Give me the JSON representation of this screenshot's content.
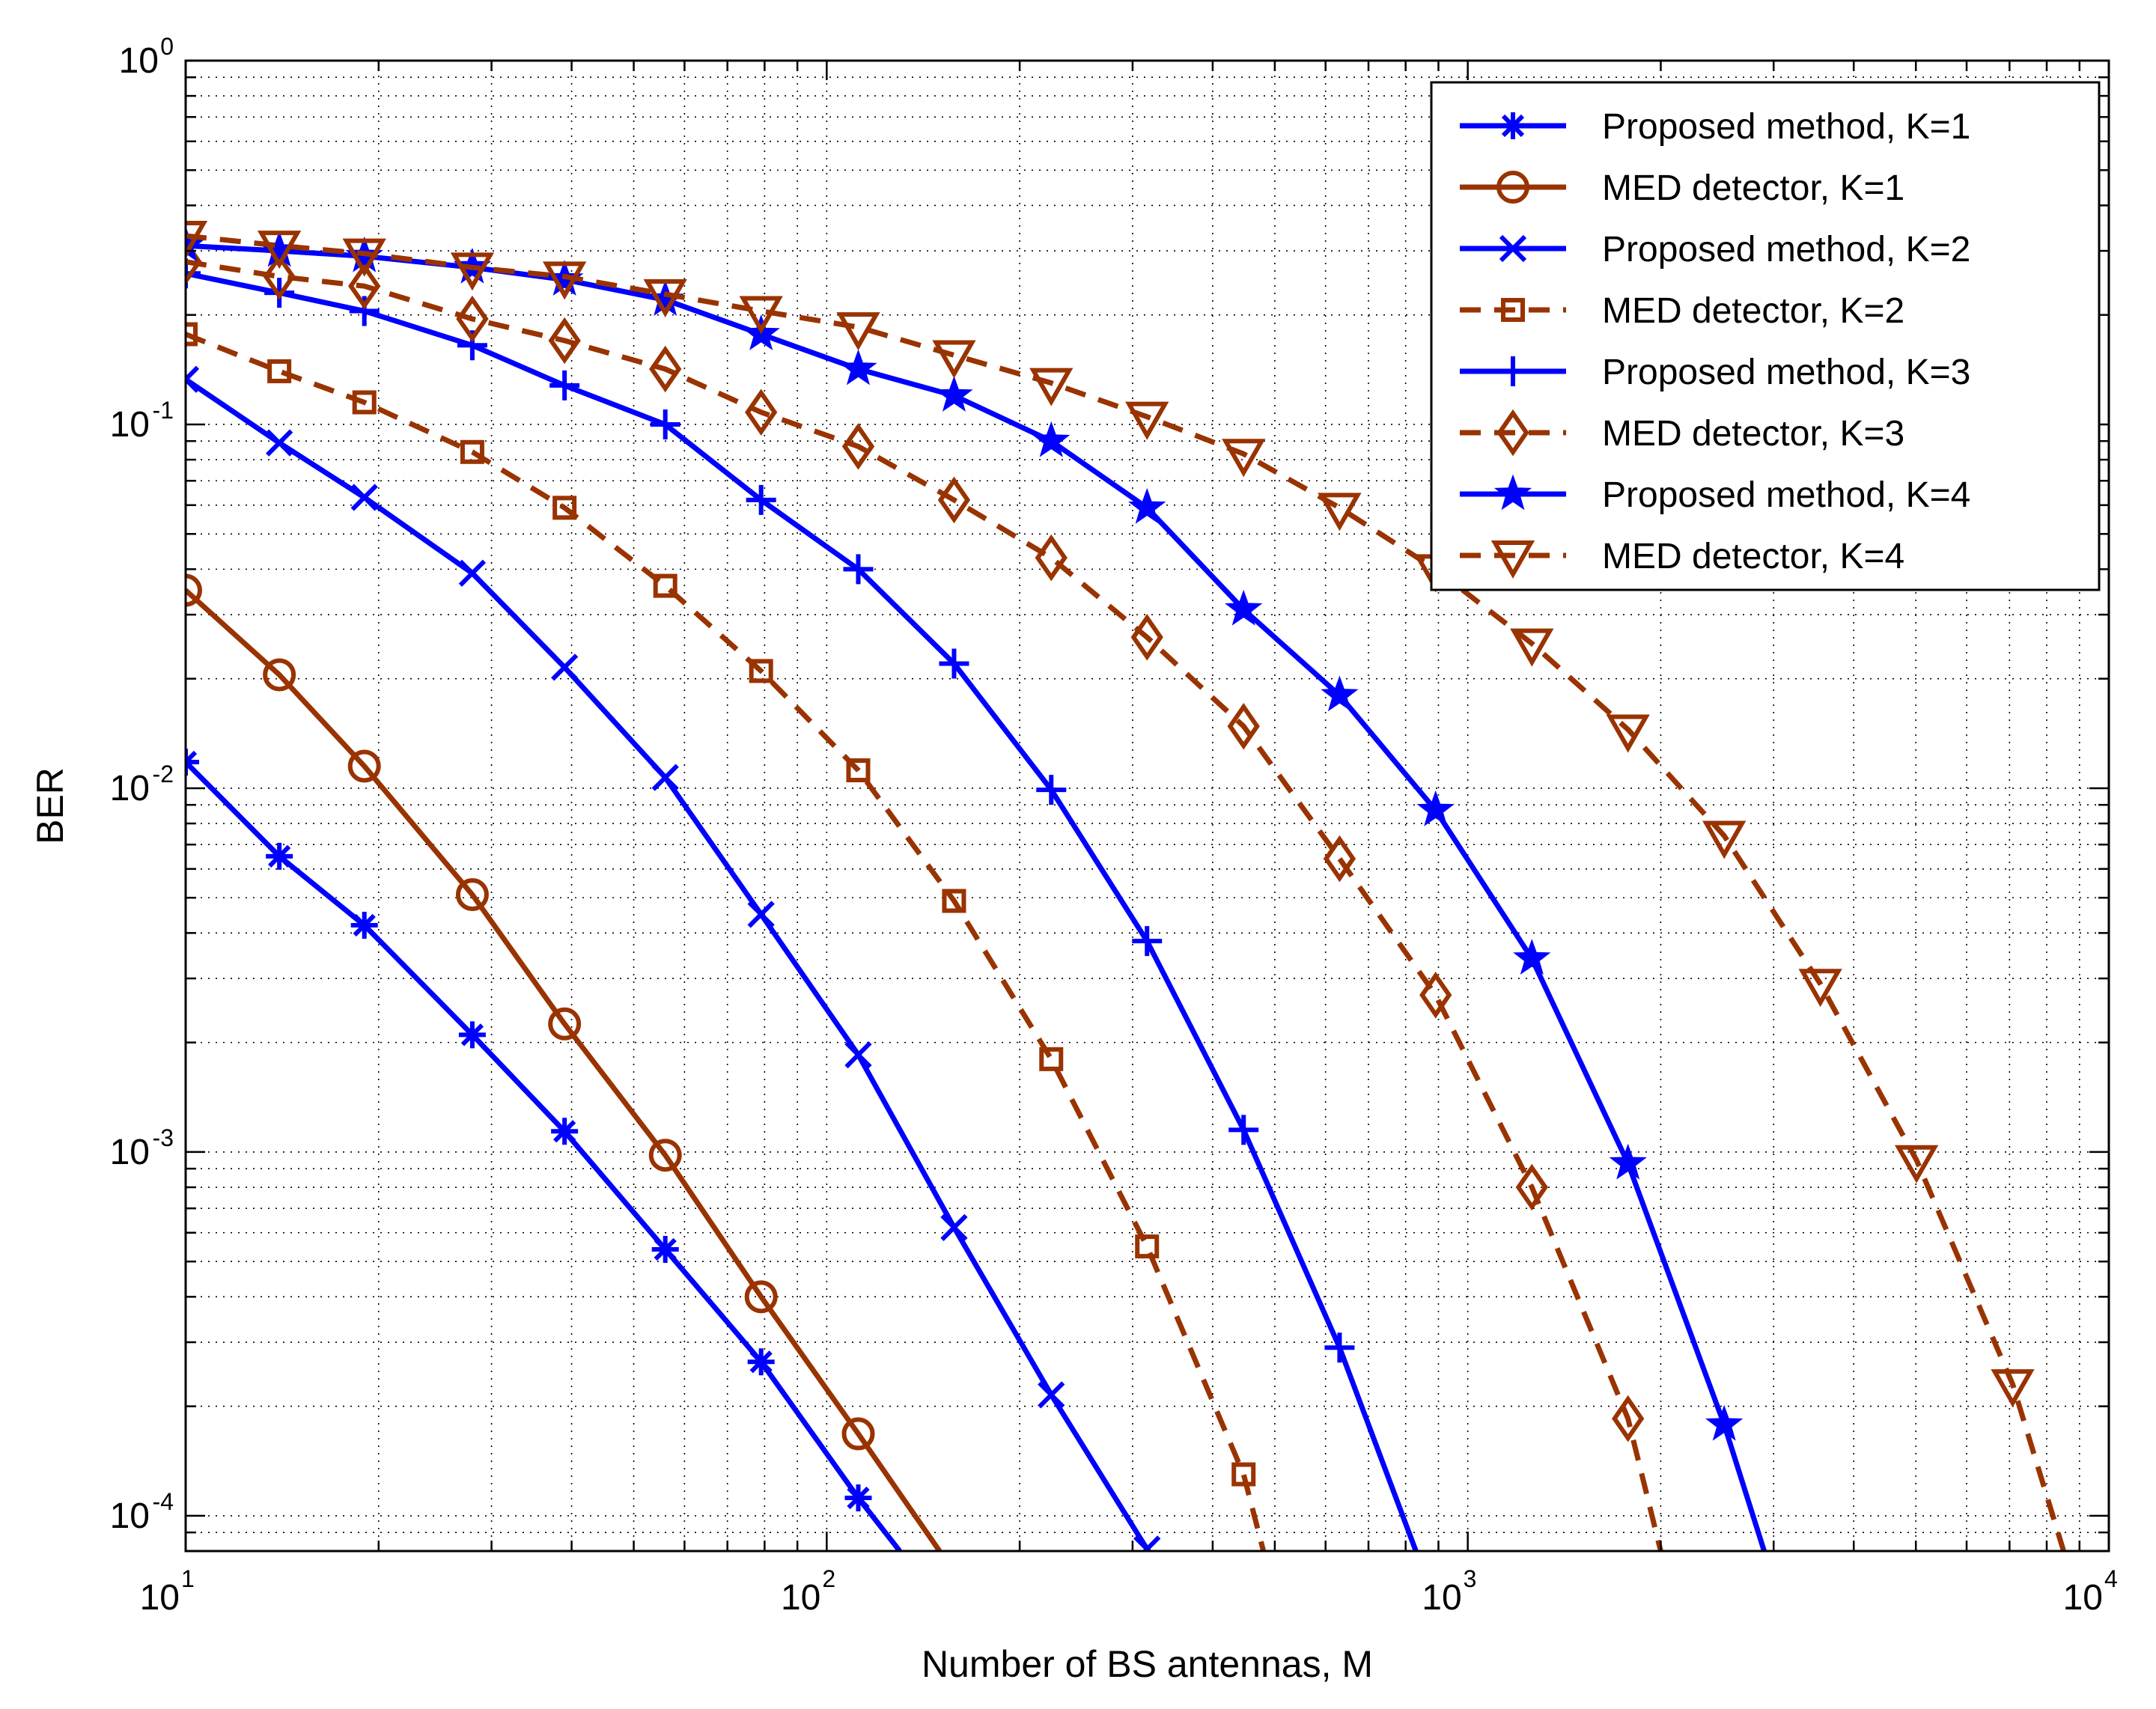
{
  "chart_data": {
    "type": "line",
    "title": "",
    "xlabel": "Number of BS antennas, M",
    "ylabel": "BER",
    "xscale": "log",
    "yscale": "log",
    "xlim": [
      10,
      10000
    ],
    "ylim": [
      8e-05,
      1
    ],
    "grid": true,
    "legend_position": "top-right",
    "x_ticks": [
      {
        "base": "10",
        "exp": "1",
        "value": 10
      },
      {
        "base": "10",
        "exp": "2",
        "value": 100
      },
      {
        "base": "10",
        "exp": "3",
        "value": 1000
      },
      {
        "base": "10",
        "exp": "4",
        "value": 10000
      }
    ],
    "y_ticks": [
      {
        "base": "10",
        "exp": "-4",
        "value": 0.0001
      },
      {
        "base": "10",
        "exp": "-3",
        "value": 0.001
      },
      {
        "base": "10",
        "exp": "-2",
        "value": 0.01
      },
      {
        "base": "10",
        "exp": "-1",
        "value": 0.1
      },
      {
        "base": "10",
        "exp": "0",
        "value": 1
      }
    ],
    "series": [
      {
        "name": "Proposed method, K=1",
        "color": "#0000ff",
        "dash": "solid",
        "marker": "asterisk",
        "x": [
          10,
          14,
          19,
          28,
          39,
          56,
          79,
          112,
          130
        ],
        "y": [
          0.0118,
          0.0065,
          0.0042,
          0.0021,
          0.00114,
          0.00054,
          0.000265,
          0.000112,
          8e-05
        ]
      },
      {
        "name": "MED detector, K=1",
        "color": "#993300",
        "dash": "solid",
        "marker": "circle",
        "x": [
          10,
          14,
          19,
          28,
          39,
          56,
          79,
          112,
          150
        ],
        "y": [
          0.035,
          0.0205,
          0.0115,
          0.0051,
          0.00225,
          0.00098,
          0.0004,
          0.000168,
          8e-05
        ]
      },
      {
        "name": "Proposed method, K=2",
        "color": "#0000ff",
        "dash": "solid",
        "marker": "x",
        "x": [
          10,
          14,
          19,
          28,
          39,
          56,
          79,
          112,
          158,
          224,
          316
        ],
        "y": [
          0.133,
          0.089,
          0.063,
          0.039,
          0.0215,
          0.0107,
          0.0045,
          0.00185,
          0.00062,
          0.000215,
          8.1e-05
        ]
      },
      {
        "name": "MED detector, K=2",
        "color": "#993300",
        "dash": "dash",
        "marker": "square",
        "x": [
          10,
          14,
          19,
          28,
          39,
          56,
          79,
          112,
          158,
          224,
          316,
          447,
          480
        ],
        "y": [
          0.177,
          0.14,
          0.115,
          0.084,
          0.059,
          0.036,
          0.021,
          0.0112,
          0.0049,
          0.0018,
          0.00055,
          0.00013,
          8e-05
        ]
      },
      {
        "name": "Proposed method, K=3",
        "color": "#0000ff",
        "dash": "solid",
        "marker": "plus",
        "x": [
          10,
          14,
          19,
          28,
          39,
          56,
          79,
          112,
          158,
          224,
          316,
          447,
          631,
          830
        ],
        "y": [
          0.26,
          0.23,
          0.205,
          0.165,
          0.128,
          0.1,
          0.062,
          0.04,
          0.022,
          0.0099,
          0.0038,
          0.00115,
          0.00029,
          8e-05
        ]
      },
      {
        "name": "MED detector, K=3",
        "color": "#993300",
        "dash": "dash",
        "marker": "diamond",
        "x": [
          10,
          14,
          19,
          28,
          39,
          56,
          79,
          112,
          158,
          224,
          316,
          447,
          631,
          891,
          1259,
          1778,
          2000
        ],
        "y": [
          0.28,
          0.255,
          0.24,
          0.195,
          0.17,
          0.142,
          0.108,
          0.087,
          0.062,
          0.043,
          0.026,
          0.0148,
          0.0064,
          0.0027,
          0.0008,
          0.000185,
          8e-05
        ]
      },
      {
        "name": "Proposed method, K=4",
        "color": "#0000ff",
        "dash": "solid",
        "marker": "star",
        "x": [
          10,
          14,
          19,
          28,
          39,
          56,
          79,
          112,
          158,
          224,
          316,
          447,
          631,
          891,
          1259,
          1778,
          2512,
          2900
        ],
        "y": [
          0.31,
          0.3,
          0.29,
          0.27,
          0.25,
          0.22,
          0.177,
          0.142,
          0.12,
          0.09,
          0.059,
          0.031,
          0.018,
          0.0087,
          0.0034,
          0.00093,
          0.000178,
          8e-05
        ]
      },
      {
        "name": "MED detector, K=4",
        "color": "#993300",
        "dash": "dash",
        "marker": "triangle-down",
        "x": [
          10,
          14,
          19,
          28,
          39,
          56,
          79,
          112,
          158,
          224,
          316,
          447,
          631,
          891,
          1259,
          1778,
          2512,
          3548,
          5012,
          7079,
          8500
        ],
        "y": [
          0.33,
          0.31,
          0.295,
          0.27,
          0.255,
          0.228,
          0.205,
          0.185,
          0.155,
          0.13,
          0.105,
          0.083,
          0.059,
          0.04,
          0.025,
          0.0145,
          0.0074,
          0.0029,
          0.00095,
          0.00023,
          8e-05
        ]
      }
    ]
  }
}
